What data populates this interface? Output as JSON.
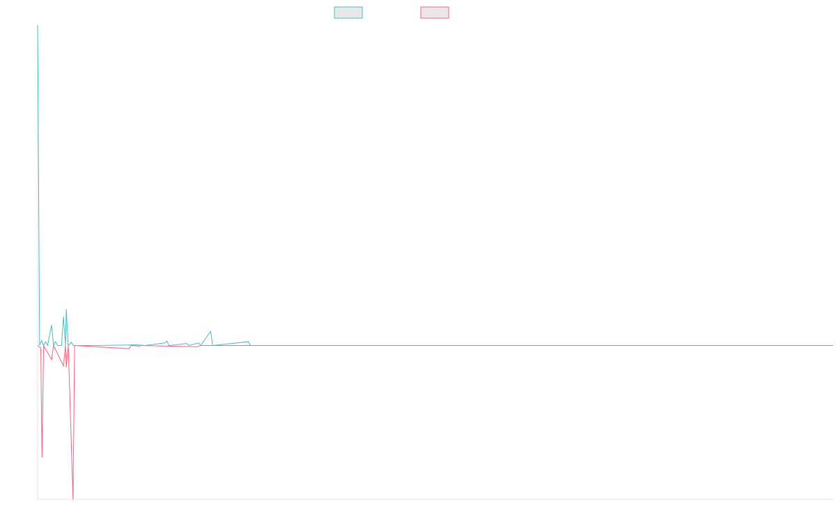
{
  "chart_data": {
    "type": "line",
    "title": "",
    "xlabel": "",
    "ylabel": "",
    "grid": false,
    "legend": "top-center",
    "ylim": [
      -2.4,
      5.0
    ],
    "xlim": [
      0,
      200
    ],
    "series": [
      {
        "name": "",
        "color": "#4bc0c0",
        "fill": "#e8e8e8",
        "points": [
          [
            0,
            5.0
          ],
          [
            0.5,
            0.0
          ],
          [
            1,
            0.08
          ],
          [
            1.5,
            0.0
          ],
          [
            2,
            0.06
          ],
          [
            2.5,
            0.0
          ],
          [
            3.5,
            0.32
          ],
          [
            4,
            0.0
          ],
          [
            4.5,
            0.06
          ],
          [
            5,
            0.0
          ],
          [
            6,
            0.0
          ],
          [
            6.5,
            0.45
          ],
          [
            7,
            0.0
          ],
          [
            7.2,
            0.57
          ],
          [
            7.7,
            0.0
          ],
          [
            8.5,
            0.05
          ],
          [
            9,
            0.0
          ],
          [
            15,
            0.0
          ],
          [
            25,
            0.01
          ],
          [
            27,
            0.0
          ],
          [
            32,
            0.04
          ],
          [
            32.5,
            0.07
          ],
          [
            33,
            0.0
          ],
          [
            37.5,
            0.03
          ],
          [
            38,
            0.0
          ],
          [
            40.5,
            0.04
          ],
          [
            41,
            0.0
          ],
          [
            43.5,
            0.22
          ],
          [
            44,
            0.0
          ],
          [
            53,
            0.06
          ],
          [
            53.5,
            0.0
          ],
          [
            60,
            0.0
          ],
          [
            200,
            0.0
          ]
        ]
      },
      {
        "name": "",
        "color": "#ff6384",
        "fill": "#e8e8e8",
        "points": [
          [
            0,
            0.0
          ],
          [
            0.8,
            -0.04
          ],
          [
            1.1,
            -1.75
          ],
          [
            1.5,
            0.0
          ],
          [
            3.5,
            -0.22
          ],
          [
            4,
            0.0
          ],
          [
            6.5,
            -0.32
          ],
          [
            7,
            0.0
          ],
          [
            7.2,
            -0.34
          ],
          [
            7.7,
            0.0
          ],
          [
            8.9,
            -2.4
          ],
          [
            9.3,
            0.0
          ],
          [
            23,
            -0.05
          ],
          [
            23.5,
            0.0
          ],
          [
            25.5,
            -0.01
          ],
          [
            26,
            0.0
          ],
          [
            40,
            -0.02
          ],
          [
            41,
            0.0
          ],
          [
            200,
            0.0
          ]
        ]
      }
    ]
  }
}
